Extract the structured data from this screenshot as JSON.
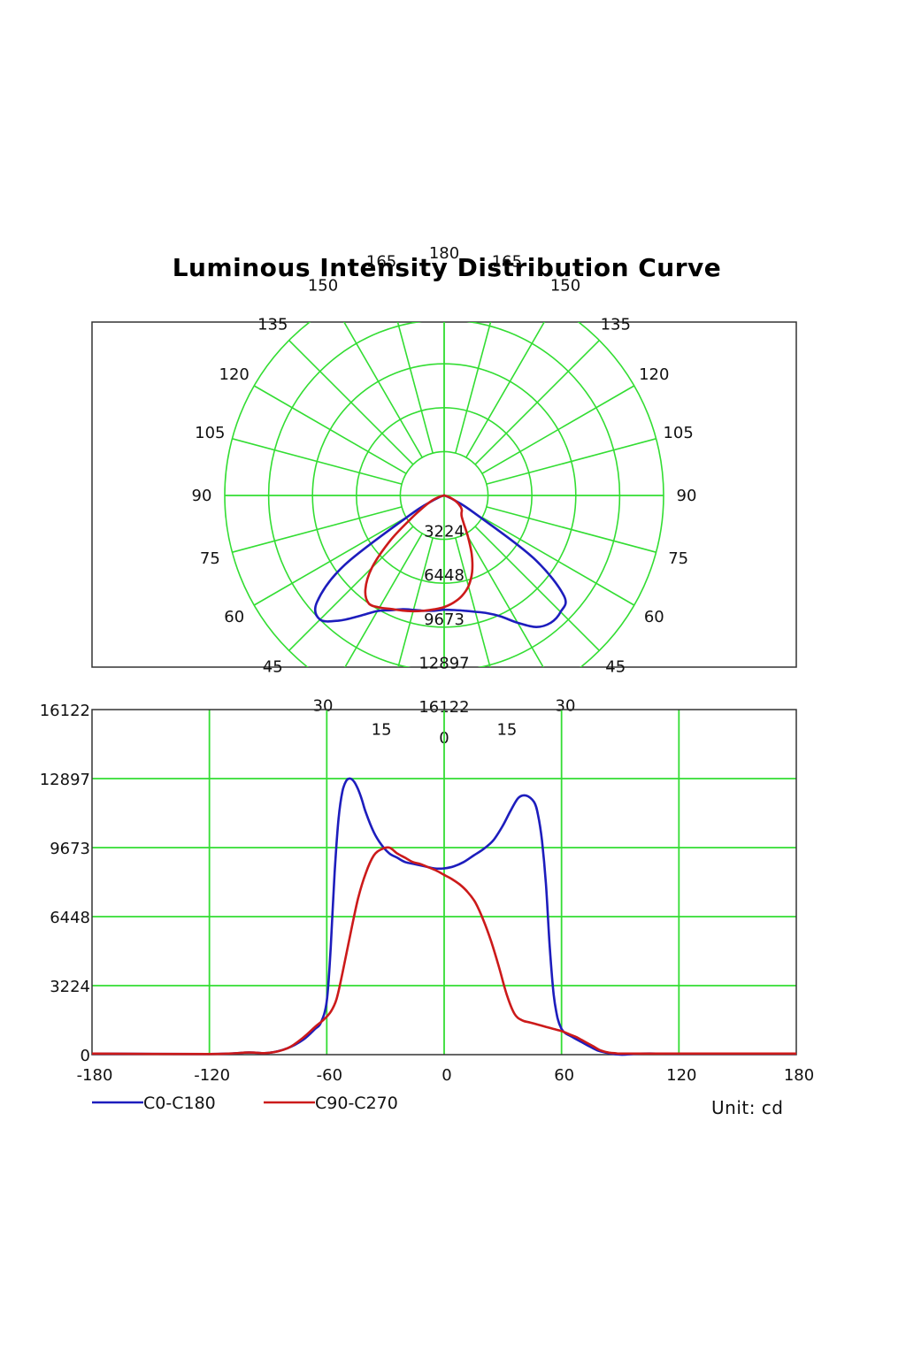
{
  "chart_data": [
    {
      "type": "polar",
      "title": "Luminous Intensity Distribution Curve",
      "angle_unit": "deg",
      "angle_labels_left": [
        "0",
        "15",
        "30",
        "45",
        "60",
        "75",
        "90",
        "105",
        "120",
        "135",
        "150",
        "165",
        "180"
      ],
      "angle_labels_right": [
        "15",
        "30",
        "45",
        "60",
        "75",
        "90",
        "105",
        "120",
        "135",
        "150",
        "165"
      ],
      "radial_ticks": [
        3224,
        6448,
        9673,
        12897,
        16122
      ],
      "radial_tick_labels": [
        "3224",
        "6448",
        "9673",
        "12897",
        "16122"
      ],
      "rmax": 16122,
      "series": [
        {
          "name": "C0-C180",
          "color": "#1d1dbd",
          "angles": [
            -90,
            -85,
            -80,
            -75,
            -70,
            -65,
            -60,
            -55,
            -50,
            -45,
            -40,
            -35,
            -30,
            -25,
            -20,
            -15,
            -10,
            -5,
            0,
            5,
            10,
            15,
            20,
            25,
            30,
            35,
            40,
            45,
            50,
            55,
            60,
            65,
            70,
            75,
            80,
            85,
            90
          ],
          "values": [
            0,
            0,
            0,
            100,
            400,
            1100,
            3000,
            9000,
            12200,
            12897,
            12000,
            10800,
            9800,
            9300,
            8900,
            8700,
            8600,
            8500,
            8400,
            8450,
            8600,
            8850,
            9200,
            9800,
            10800,
            11800,
            12200,
            12100,
            11500,
            8000,
            2500,
            900,
            300,
            80,
            0,
            0,
            0
          ]
        },
        {
          "name": "C90-C270",
          "color": "#cc1a1a",
          "angles": [
            -90,
            -85,
            -80,
            -75,
            -70,
            -65,
            -60,
            -55,
            -50,
            -45,
            -40,
            -35,
            -30,
            -25,
            -20,
            -15,
            -10,
            -5,
            0,
            5,
            10,
            15,
            20,
            25,
            30,
            35,
            40,
            45,
            50,
            55,
            60,
            65,
            70,
            75,
            80,
            85,
            90
          ],
          "values": [
            0,
            0,
            0,
            300,
            700,
            1200,
            1800,
            3000,
            5200,
            7500,
            9000,
            9673,
            9500,
            9200,
            9000,
            8800,
            8600,
            8400,
            8200,
            7900,
            7500,
            6900,
            6000,
            4800,
            3500,
            2500,
            2000,
            1800,
            1700,
            1500,
            1200,
            900,
            500,
            200,
            0,
            0,
            0
          ]
        }
      ]
    },
    {
      "type": "line",
      "xlim": [
        -180,
        180
      ],
      "ylim": [
        0,
        16122
      ],
      "x_ticks": [
        -180,
        -120,
        -60,
        0,
        60,
        120,
        180
      ],
      "x_tick_labels": [
        "-180",
        "-120",
        "-60",
        "0",
        "60",
        "120",
        "180"
      ],
      "y_ticks": [
        0,
        3224,
        6448,
        9673,
        12897,
        16122
      ],
      "y_tick_labels": [
        "0",
        "3224",
        "6448",
        "9673",
        "12897",
        "16122"
      ],
      "grid": true,
      "series": [
        {
          "name": "C0-C180",
          "color": "#1d1dbd",
          "x": [
            -180,
            -120,
            -100,
            -90,
            -80,
            -72,
            -66,
            -63,
            -60,
            -58,
            -56,
            -54,
            -52,
            -50,
            -48,
            -46,
            -44,
            -42,
            -40,
            -36,
            -32,
            -28,
            -24,
            -20,
            -15,
            -10,
            -5,
            0,
            5,
            10,
            15,
            20,
            25,
            30,
            34,
            38,
            42,
            46,
            48,
            50,
            52,
            54,
            56,
            58,
            60,
            62,
            64,
            66,
            70,
            75,
            80,
            90,
            100,
            120,
            180
          ],
          "y": [
            50,
            30,
            100,
            80,
            300,
            700,
            1200,
            1500,
            2500,
            5000,
            8500,
            11000,
            12300,
            12800,
            12897,
            12750,
            12400,
            11900,
            11300,
            10400,
            9800,
            9400,
            9200,
            9000,
            8900,
            8800,
            8700,
            8700,
            8800,
            9000,
            9300,
            9600,
            10000,
            10700,
            11400,
            12000,
            12100,
            11800,
            11200,
            10000,
            8000,
            5000,
            2800,
            1700,
            1200,
            1000,
            900,
            800,
            600,
            350,
            150,
            0,
            50,
            50,
            50
          ]
        },
        {
          "name": "C90-C270",
          "color": "#cc1a1a",
          "x": [
            -180,
            -120,
            -100,
            -90,
            -80,
            -72,
            -66,
            -62,
            -58,
            -55,
            -52,
            -48,
            -44,
            -40,
            -36,
            -32,
            -28,
            -24,
            -20,
            -16,
            -12,
            -8,
            -4,
            0,
            4,
            8,
            12,
            16,
            20,
            24,
            28,
            32,
            36,
            40,
            44,
            48,
            52,
            56,
            60,
            64,
            68,
            72,
            76,
            80,
            84,
            88,
            90,
            100,
            120,
            180
          ],
          "y": [
            50,
            30,
            100,
            80,
            300,
            800,
            1300,
            1600,
            2000,
            2600,
            3800,
            5600,
            7300,
            8500,
            9300,
            9600,
            9673,
            9400,
            9200,
            9000,
            8900,
            8750,
            8600,
            8400,
            8200,
            7950,
            7600,
            7100,
            6300,
            5300,
            4100,
            2800,
            1900,
            1600,
            1500,
            1400,
            1300,
            1200,
            1100,
            950,
            800,
            600,
            400,
            200,
            100,
            60,
            50,
            50,
            50,
            50
          ]
        }
      ],
      "legend": [
        "C0-C180",
        "C90-C270"
      ],
      "unit_label": "Unit: cd"
    }
  ],
  "title": "Luminous Intensity Distribution Curve",
  "legend": {
    "series_1": "C0-C180",
    "series_2": "C90-C270"
  },
  "unit_label": "Unit: cd",
  "colors": {
    "grid": "#33dd33",
    "frame": "#333333",
    "series_1": "#1d1dbd",
    "series_2": "#cc1a1a"
  }
}
